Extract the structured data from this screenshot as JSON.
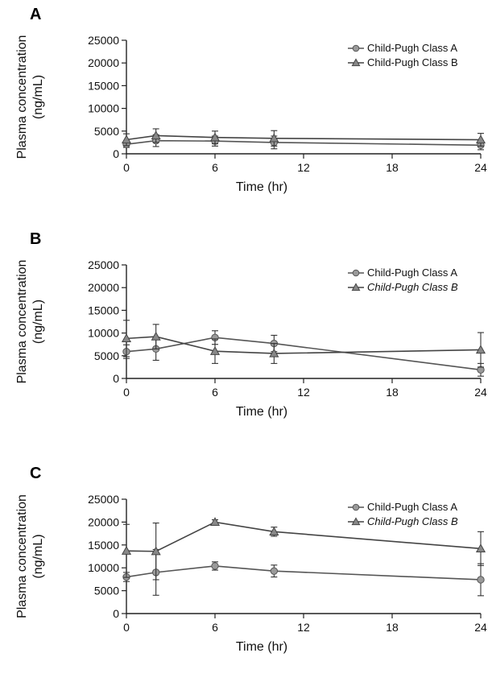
{
  "chart_data": [
    {
      "type": "line",
      "panel_label": "A",
      "xlabel": "Time (hr)",
      "ylabel": "Plasma concentration (ng/mL)",
      "ylabel_lines": [
        "Plasma concentration",
        "(ng/mL)"
      ],
      "xlim": [
        0,
        24
      ],
      "ylim": [
        0,
        25000
      ],
      "xticks": [
        0,
        6,
        12,
        18,
        24
      ],
      "yticks": [
        0,
        5000,
        10000,
        15000,
        20000,
        25000
      ],
      "legend_position": "top-right",
      "legend_italic_b": false,
      "series": [
        {
          "name": "Child-Pugh Class A",
          "marker": "circle",
          "x": [
            0,
            2,
            6,
            10,
            24
          ],
          "y": [
            2100,
            2900,
            2800,
            2500,
            1900
          ],
          "err": [
            700,
            1300,
            1100,
            1400,
            1000
          ]
        },
        {
          "name": "Child-Pugh Class B",
          "marker": "triangle",
          "x": [
            0,
            2,
            6,
            10,
            24
          ],
          "y": [
            3100,
            4000,
            3600,
            3400,
            3100
          ],
          "err": [
            1300,
            1500,
            1400,
            1700,
            1400
          ]
        }
      ]
    },
    {
      "type": "line",
      "panel_label": "B",
      "xlabel": "Time (hr)",
      "ylabel": "Plasma concentration (ng/mL)",
      "ylabel_lines": [
        "Plasma concentration",
        "(ng/mL)"
      ],
      "xlim": [
        0,
        24
      ],
      "ylim": [
        0,
        25000
      ],
      "xticks": [
        0,
        6,
        12,
        18,
        24
      ],
      "yticks": [
        0,
        5000,
        10000,
        15000,
        20000,
        25000
      ],
      "legend_position": "top-right",
      "legend_italic_b": true,
      "series": [
        {
          "name": "Child-Pugh Class A",
          "marker": "circle",
          "x": [
            0,
            2,
            6,
            10,
            24
          ],
          "y": [
            5900,
            6500,
            9000,
            7700,
            1900
          ],
          "err": [
            1500,
            2500,
            1500,
            1800,
            1400
          ]
        },
        {
          "name": "Child-Pugh Class B",
          "marker": "triangle",
          "x": [
            0,
            2,
            6,
            10,
            24
          ],
          "y": [
            8800,
            9200,
            6000,
            5500,
            6300
          ],
          "err": [
            4000,
            2700,
            2700,
            2200,
            3800
          ]
        }
      ]
    },
    {
      "type": "line",
      "panel_label": "C",
      "xlabel": "Time (hr)",
      "ylabel": "Plasma concentration (ng/mL)",
      "ylabel_lines": [
        "Plasma concentration",
        "(ng/mL)"
      ],
      "xlim": [
        0,
        24
      ],
      "ylim": [
        0,
        25000
      ],
      "xticks": [
        0,
        6,
        12,
        18,
        24
      ],
      "yticks": [
        0,
        5000,
        10000,
        15000,
        20000,
        25000
      ],
      "legend_position": "top-right",
      "legend_italic_b": true,
      "series": [
        {
          "name": "Child-Pugh Class A",
          "marker": "circle",
          "x": [
            0,
            2,
            6,
            10,
            24
          ],
          "y": [
            8000,
            9000,
            10400,
            9300,
            7400
          ],
          "err": [
            1000,
            5000,
            900,
            1300,
            3500
          ]
        },
        {
          "name": "Child-Pugh Class B",
          "marker": "triangle",
          "x": [
            0,
            2,
            6,
            10,
            24
          ],
          "y": [
            13700,
            13600,
            20000,
            17900,
            14200
          ],
          "err": [
            5800,
            6200,
            500,
            1000,
            3700
          ]
        }
      ]
    }
  ]
}
